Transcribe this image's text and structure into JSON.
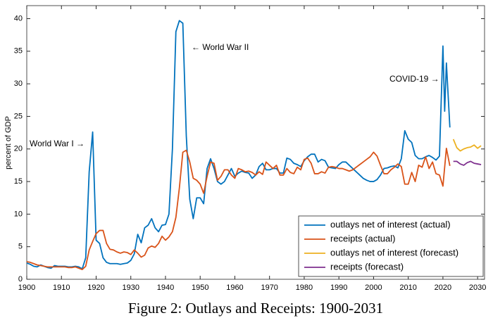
{
  "chart_data": {
    "type": "line",
    "caption": "Figure 2: Outlays and Receipts: 1900-2031",
    "y_label": "percent of GDP",
    "annotations": [
      "World War I →",
      "← World War II",
      "COVID-19 →"
    ],
    "xlim": [
      1900,
      2032
    ],
    "ylim": [
      0,
      42
    ],
    "xticks": [
      1900,
      1910,
      1920,
      1930,
      1940,
      1950,
      1960,
      1970,
      1980,
      1990,
      2000,
      2010,
      2020,
      2030
    ],
    "yticks": [
      0,
      5,
      10,
      15,
      20,
      25,
      30,
      35,
      40
    ],
    "grid": false,
    "legend": "lower right",
    "series": [
      {
        "name": "outlays net of interest (actual)",
        "color": "#0072bd",
        "x": [
          1900,
          1901,
          1902,
          1903,
          1904,
          1905,
          1906,
          1907,
          1908,
          1909,
          1910,
          1911,
          1912,
          1913,
          1914,
          1915,
          1916,
          1917,
          1918,
          1919,
          1920,
          1921,
          1922,
          1923,
          1924,
          1925,
          1926,
          1927,
          1928,
          1929,
          1930,
          1931,
          1932,
          1933,
          1934,
          1935,
          1936,
          1937,
          1938,
          1939,
          1940,
          1941,
          1942,
          1943,
          1944,
          1945,
          1946,
          1947,
          1948,
          1949,
          1950,
          1951,
          1952,
          1953,
          1954,
          1955,
          1956,
          1957,
          1958,
          1959,
          1960,
          1961,
          1962,
          1963,
          1964,
          1965,
          1966,
          1967,
          1968,
          1969,
          1970,
          1971,
          1972,
          1973,
          1974,
          1975,
          1976,
          1977,
          1978,
          1979,
          1980,
          1981,
          1982,
          1983,
          1984,
          1985,
          1986,
          1987,
          1988,
          1989,
          1990,
          1991,
          1992,
          1993,
          1994,
          1995,
          1996,
          1997,
          1998,
          1999,
          2000,
          2001,
          2002,
          2003,
          2004,
          2005,
          2006,
          2007,
          2008,
          2009,
          2010,
          2011,
          2012,
          2013,
          2014,
          2015,
          2016,
          2017,
          2018,
          2019,
          2020,
          2020.5,
          2021,
          2022
        ],
        "values": [
          2.5,
          2.3,
          2.0,
          1.9,
          2.2,
          2.0,
          1.8,
          1.7,
          2.1,
          2.0,
          2.0,
          2.0,
          1.9,
          1.9,
          2.0,
          1.9,
          1.6,
          3.3,
          16.5,
          22.6,
          6.0,
          5.5,
          3.3,
          2.6,
          2.4,
          2.4,
          2.4,
          2.3,
          2.4,
          2.5,
          2.9,
          3.9,
          6.9,
          5.6,
          7.9,
          8.3,
          9.3,
          7.9,
          7.3,
          8.3,
          8.4,
          10.0,
          20.0,
          38.0,
          39.7,
          39.3,
          22.0,
          12.3,
          9.3,
          12.5,
          12.5,
          11.6,
          17.0,
          18.5,
          17.0,
          15.0,
          14.6,
          15.0,
          16.0,
          17.0,
          15.8,
          16.3,
          16.6,
          16.4,
          16.3,
          15.5,
          16.0,
          17.3,
          17.8,
          16.8,
          16.8,
          17.0,
          17.0,
          16.3,
          16.3,
          18.6,
          18.4,
          17.8,
          17.6,
          17.3,
          18.2,
          18.8,
          19.2,
          19.2,
          18.0,
          18.4,
          18.2,
          17.2,
          17.1,
          17.0,
          17.6,
          18.0,
          18.0,
          17.5,
          17.0,
          16.5,
          16.0,
          15.5,
          15.2,
          15.0,
          15.0,
          15.3,
          16.0,
          17.0,
          17.1,
          17.3,
          17.4,
          17.1,
          18.5,
          22.8,
          21.5,
          21.0,
          19.0,
          18.5,
          18.5,
          18.8,
          19.0,
          18.7,
          18.3,
          18.9,
          35.8,
          25.8,
          33.2,
          23.3
        ]
      },
      {
        "name": "receipts (actual)",
        "color": "#d95319",
        "x": [
          1900,
          1901,
          1902,
          1903,
          1904,
          1905,
          1906,
          1907,
          1908,
          1909,
          1910,
          1911,
          1912,
          1913,
          1914,
          1915,
          1916,
          1917,
          1918,
          1919,
          1920,
          1921,
          1922,
          1923,
          1924,
          1925,
          1926,
          1927,
          1928,
          1929,
          1930,
          1931,
          1932,
          1933,
          1934,
          1935,
          1936,
          1937,
          1938,
          1939,
          1940,
          1941,
          1942,
          1943,
          1944,
          1945,
          1946,
          1947,
          1948,
          1949,
          1950,
          1951,
          1952,
          1953,
          1954,
          1955,
          1956,
          1957,
          1958,
          1959,
          1960,
          1961,
          1962,
          1963,
          1964,
          1965,
          1966,
          1967,
          1968,
          1969,
          1970,
          1971,
          1972,
          1973,
          1974,
          1975,
          1976,
          1977,
          1978,
          1979,
          1980,
          1981,
          1982,
          1983,
          1984,
          1985,
          1986,
          1987,
          1988,
          1989,
          1990,
          1991,
          1992,
          1993,
          1994,
          1995,
          1996,
          1997,
          1998,
          1999,
          2000,
          2001,
          2002,
          2003,
          2004,
          2005,
          2006,
          2007,
          2008,
          2009,
          2010,
          2011,
          2012,
          2013,
          2014,
          2015,
          2016,
          2017,
          2018,
          2019,
          2020,
          2021,
          2022
        ],
        "values": [
          2.7,
          2.6,
          2.4,
          2.2,
          2.1,
          2.0,
          1.9,
          1.9,
          1.9,
          1.9,
          1.9,
          1.9,
          1.8,
          1.8,
          1.9,
          1.7,
          1.5,
          2.0,
          4.5,
          5.8,
          7.0,
          7.5,
          7.5,
          5.5,
          4.6,
          4.5,
          4.2,
          4.0,
          4.2,
          4.1,
          3.8,
          4.5,
          4.0,
          3.4,
          3.7,
          4.8,
          5.1,
          4.9,
          5.5,
          6.6,
          6.0,
          6.5,
          7.3,
          9.5,
          14.0,
          19.5,
          19.8,
          18.0,
          15.5,
          15.2,
          14.6,
          13.2,
          15.8,
          18.0,
          17.8,
          15.2,
          15.8,
          16.8,
          16.8,
          16.0,
          15.5,
          17.0,
          16.8,
          16.5,
          16.6,
          16.4,
          16.0,
          16.5,
          16.1,
          18.0,
          17.5,
          17.0,
          17.5,
          16.0,
          16.0,
          17.0,
          16.4,
          16.2,
          17.2,
          16.8,
          18.4,
          18.6,
          17.8,
          16.2,
          16.2,
          16.5,
          16.3,
          17.2,
          17.3,
          17.2,
          17.0,
          17.0,
          16.8,
          16.6,
          16.8,
          17.2,
          17.6,
          18.0,
          18.4,
          18.8,
          19.5,
          18.9,
          17.5,
          16.2,
          16.2,
          16.8,
          17.2,
          17.7,
          17.3,
          14.6,
          14.6,
          16.4,
          15.0,
          17.5,
          17.2,
          18.8,
          17.0,
          18.0,
          16.2,
          16.0,
          14.3,
          20.1,
          17.4
        ]
      },
      {
        "name": "outlays net of interest (forecast)",
        "color": "#edb120",
        "x": [
          2023,
          2024,
          2025,
          2026,
          2027,
          2028,
          2029,
          2030,
          2031
        ],
        "values": [
          21.5,
          20.2,
          19.7,
          20.0,
          20.2,
          20.3,
          20.6,
          20.1,
          20.5
        ]
      },
      {
        "name": "receipts (forecast)",
        "color": "#7e2f8e",
        "x": [
          2023,
          2024,
          2025,
          2026,
          2027,
          2028,
          2029,
          2030,
          2031
        ],
        "values": [
          18.1,
          18.1,
          17.7,
          17.5,
          17.9,
          18.1,
          17.8,
          17.7,
          17.6
        ]
      }
    ]
  }
}
